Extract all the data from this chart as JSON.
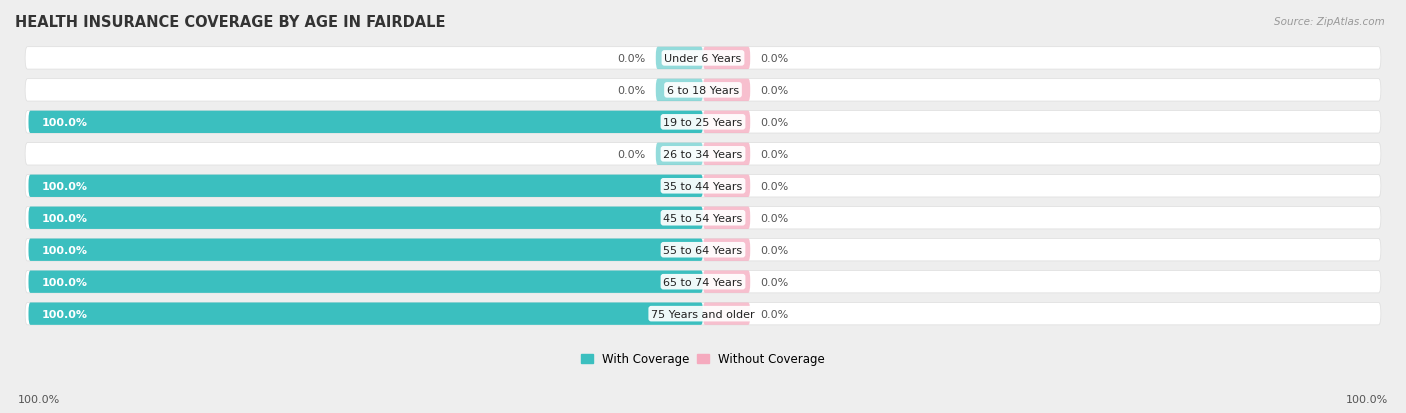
{
  "title": "HEALTH INSURANCE COVERAGE BY AGE IN FAIRDALE",
  "source_text": "Source: ZipAtlas.com",
  "categories": [
    "Under 6 Years",
    "6 to 18 Years",
    "19 to 25 Years",
    "26 to 34 Years",
    "35 to 44 Years",
    "45 to 54 Years",
    "55 to 64 Years",
    "65 to 74 Years",
    "75 Years and older"
  ],
  "with_coverage": [
    0.0,
    0.0,
    100.0,
    0.0,
    100.0,
    100.0,
    100.0,
    100.0,
    100.0
  ],
  "without_coverage": [
    0.0,
    0.0,
    0.0,
    0.0,
    0.0,
    0.0,
    0.0,
    0.0,
    0.0
  ],
  "color_with": "#3BBFBF",
  "color_without": "#F5AABE",
  "bg_color": "#EEEEEE",
  "bar_bg_color": "#FFFFFF",
  "title_color": "#333333",
  "source_color": "#999999",
  "label_color_inside": "#FFFFFF",
  "label_color_outside": "#555555",
  "title_fontsize": 10.5,
  "label_fontsize": 8.0,
  "tick_fontsize": 8.0,
  "legend_fontsize": 8.5,
  "bar_height": 0.7,
  "stub_size": 7.0,
  "max_val": 100.0
}
